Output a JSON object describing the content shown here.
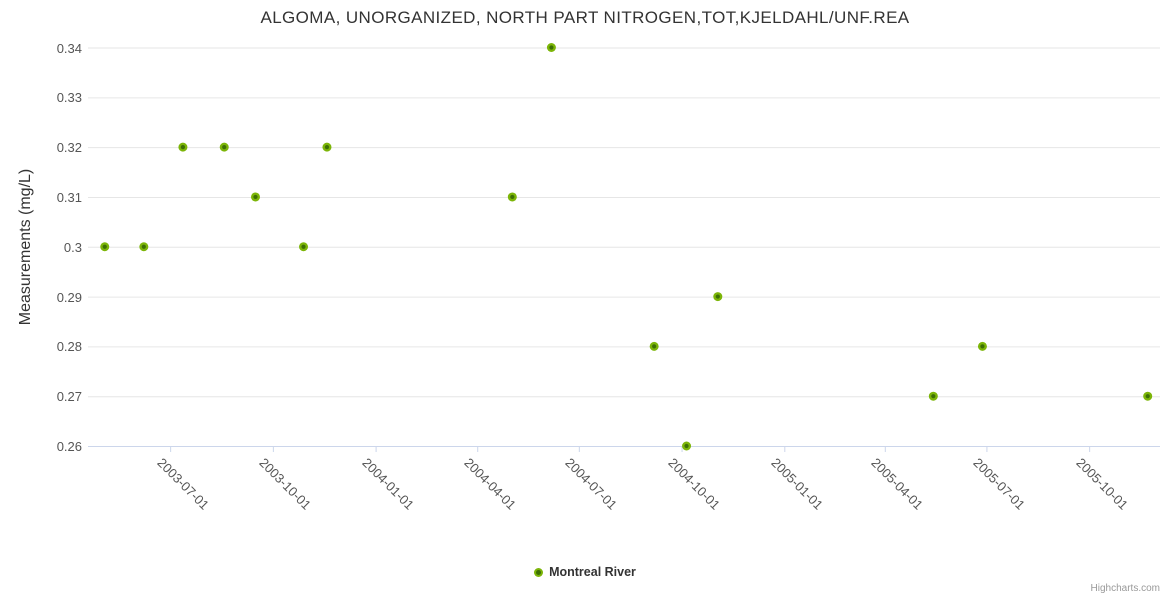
{
  "header": {
    "title": "ALGOMA, UNORGANIZED, NORTH PART NITROGEN,TOT,KJELDAHL/UNF.REA"
  },
  "legend": {
    "items": [
      {
        "label": "Montreal River",
        "marker_color": "#7cb508",
        "marker_center_color": "#3d7004"
      }
    ]
  },
  "credits": {
    "label": "Highcharts.com"
  },
  "chart_data": {
    "type": "scatter",
    "title": "ALGOMA, UNORGANIZED, NORTH PART NITROGEN,TOT,KJELDAHL/UNF.REA",
    "xlabel": "",
    "ylabel": "Measurements (mg/L)",
    "legend_position": "bottom",
    "grid": true,
    "xlim": [
      "2003-04-18",
      "2005-12-03"
    ],
    "ylim": [
      0.26,
      0.34
    ],
    "x_ticks": [
      "2003-07-01",
      "2003-10-01",
      "2004-01-01",
      "2004-04-01",
      "2004-07-01",
      "2004-10-01",
      "2005-01-01",
      "2005-04-01",
      "2005-07-01",
      "2005-10-01"
    ],
    "y_ticks": [
      0.26,
      0.27,
      0.28,
      0.29,
      0.3,
      0.31,
      0.32,
      0.33,
      0.34
    ],
    "y_tick_labels": [
      "0.26",
      "0.27",
      "0.28",
      "0.29",
      "0.3",
      "0.31",
      "0.32",
      "0.33",
      "0.34"
    ],
    "series": [
      {
        "name": "Montreal River",
        "color": "#7cb508",
        "center_color": "#3d7004",
        "points": [
          {
            "x": "2003-05-03",
            "y": 0.3
          },
          {
            "x": "2003-06-07",
            "y": 0.3
          },
          {
            "x": "2003-07-12",
            "y": 0.32
          },
          {
            "x": "2003-08-18",
            "y": 0.32
          },
          {
            "x": "2003-09-15",
            "y": 0.31
          },
          {
            "x": "2003-10-28",
            "y": 0.3
          },
          {
            "x": "2003-11-18",
            "y": 0.32
          },
          {
            "x": "2004-05-02",
            "y": 0.31
          },
          {
            "x": "2004-06-06",
            "y": 0.34
          },
          {
            "x": "2004-09-06",
            "y": 0.28
          },
          {
            "x": "2004-10-05",
            "y": 0.26
          },
          {
            "x": "2004-11-02",
            "y": 0.29
          },
          {
            "x": "2005-05-14",
            "y": 0.27
          },
          {
            "x": "2005-06-27",
            "y": 0.28
          },
          {
            "x": "2005-11-22",
            "y": 0.27
          }
        ]
      }
    ],
    "colors": {
      "grid_line": "#e6e6e6",
      "axis_line": "#ccd6eb",
      "title_text": "#333333",
      "label_text": "#555555",
      "credit_text": "#999999"
    }
  }
}
